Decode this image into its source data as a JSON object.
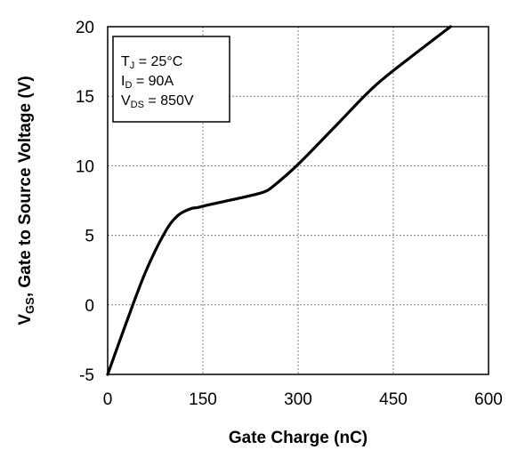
{
  "chart_data": {
    "type": "line",
    "xlabel": "Gate Charge (nC)",
    "ylabel": {
      "main": "V",
      "sub": "GS",
      "rest": ", Gate to Source Voltage (V)"
    },
    "xlim": [
      0,
      600
    ],
    "ylim": [
      -5,
      20
    ],
    "xticks": [
      "0",
      "150",
      "300",
      "450",
      "600"
    ],
    "yticks": [
      "20",
      "15",
      "10",
      "5",
      "0",
      "-5"
    ],
    "grid": true,
    "legend_position": "top-left",
    "annotations": [
      {
        "main": "T",
        "sub": "J",
        "rest": " = 25°C"
      },
      {
        "main": "I",
        "sub": "D",
        "rest": " = 90A"
      },
      {
        "main": "V",
        "sub": "DS",
        "rest": " = 850V"
      }
    ],
    "series": [
      {
        "color": "#000000",
        "x": [
          0,
          30,
          60,
          90,
          110,
          130,
          142,
          160,
          190,
          220,
          245,
          260,
          300,
          360,
          420,
          480,
          540
        ],
        "y": [
          -5,
          -1.2,
          2.4,
          5.2,
          6.4,
          6.9,
          7.0,
          7.2,
          7.5,
          7.8,
          8.1,
          8.5,
          10.1,
          12.9,
          15.7,
          17.9,
          20.0
        ]
      }
    ]
  }
}
